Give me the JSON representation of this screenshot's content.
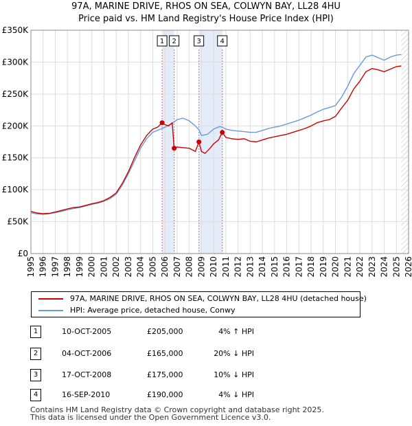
{
  "header": {
    "title": "97A, MARINE DRIVE, RHOS ON SEA, COLWYN BAY, LL28 4HU",
    "subtitle": "Price paid vs. HM Land Registry's House Price Index (HPI)"
  },
  "chart_data": {
    "type": "line",
    "xlim": [
      1995,
      2026
    ],
    "ylim": [
      0,
      350000
    ],
    "yticks": [
      0,
      50000,
      100000,
      150000,
      200000,
      250000,
      300000,
      350000
    ],
    "ytick_labels": [
      "£0",
      "£50K",
      "£100K",
      "£150K",
      "£200K",
      "£250K",
      "£300K",
      "£350K"
    ],
    "xticks": [
      1995,
      1996,
      1997,
      1998,
      1999,
      2000,
      2001,
      2002,
      2003,
      2004,
      2005,
      2006,
      2007,
      2008,
      2009,
      2010,
      2011,
      2012,
      2013,
      2014,
      2015,
      2016,
      2017,
      2018,
      2019,
      2020,
      2021,
      2022,
      2023,
      2024,
      2025,
      2026
    ],
    "grid": true,
    "colors": {
      "property": "#cc0000",
      "hpi": "#6699dd",
      "marker_line": "#dd6677",
      "span_fill": "#e4ecf8",
      "hatch": "#bbbbbb"
    },
    "series": [
      {
        "name": "97A, MARINE DRIVE, RHOS ON SEA, COLWYN BAY, LL28 4HU (detached house)",
        "points": [
          [
            1995.0,
            66000
          ],
          [
            1995.5,
            63500
          ],
          [
            1996.0,
            62500
          ],
          [
            1996.5,
            63000
          ],
          [
            1997.0,
            65000
          ],
          [
            1997.5,
            67500
          ],
          [
            1998.0,
            70000
          ],
          [
            1998.5,
            72000
          ],
          [
            1999.0,
            73000
          ],
          [
            1999.5,
            75500
          ],
          [
            2000.0,
            78000
          ],
          [
            2000.5,
            80000
          ],
          [
            2001.0,
            83000
          ],
          [
            2001.5,
            88000
          ],
          [
            2002.0,
            95000
          ],
          [
            2002.5,
            110000
          ],
          [
            2003.0,
            128000
          ],
          [
            2003.5,
            150000
          ],
          [
            2004.0,
            170000
          ],
          [
            2004.5,
            185000
          ],
          [
            2005.0,
            195000
          ],
          [
            2005.4,
            198000
          ],
          [
            2005.77,
            205000
          ],
          [
            2006.0,
            202000
          ],
          [
            2006.3,
            200000
          ],
          [
            2006.6,
            205000
          ],
          [
            2006.76,
            165000
          ],
          [
            2007.0,
            167000
          ],
          [
            2007.5,
            166000
          ],
          [
            2008.0,
            165000
          ],
          [
            2008.5,
            160000
          ],
          [
            2008.79,
            175000
          ],
          [
            2009.0,
            160000
          ],
          [
            2009.3,
            157000
          ],
          [
            2009.7,
            165000
          ],
          [
            2010.0,
            172000
          ],
          [
            2010.4,
            178000
          ],
          [
            2010.71,
            190000
          ],
          [
            2011.0,
            182000
          ],
          [
            2011.5,
            180000
          ],
          [
            2012.0,
            179000
          ],
          [
            2012.5,
            180000
          ],
          [
            2013.0,
            176000
          ],
          [
            2013.5,
            175000
          ],
          [
            2014.0,
            178000
          ],
          [
            2014.5,
            181000
          ],
          [
            2015.0,
            183000
          ],
          [
            2015.5,
            185000
          ],
          [
            2016.0,
            187000
          ],
          [
            2016.5,
            190000
          ],
          [
            2017.0,
            193000
          ],
          [
            2017.5,
            196000
          ],
          [
            2018.0,
            200000
          ],
          [
            2018.5,
            205000
          ],
          [
            2019.0,
            208000
          ],
          [
            2019.5,
            210000
          ],
          [
            2020.0,
            215000
          ],
          [
            2020.5,
            228000
          ],
          [
            2021.0,
            240000
          ],
          [
            2021.5,
            258000
          ],
          [
            2022.0,
            270000
          ],
          [
            2022.5,
            285000
          ],
          [
            2023.0,
            290000
          ],
          [
            2023.5,
            288000
          ],
          [
            2024.0,
            285000
          ],
          [
            2024.5,
            289000
          ],
          [
            2025.0,
            293000
          ],
          [
            2025.4,
            294000
          ]
        ]
      },
      {
        "name": "HPI: Average price, detached house, Conwy",
        "points": [
          [
            1995.0,
            64000
          ],
          [
            1995.5,
            62000
          ],
          [
            1996.0,
            61500
          ],
          [
            1996.5,
            62500
          ],
          [
            1997.0,
            64000
          ],
          [
            1997.5,
            66000
          ],
          [
            1998.0,
            68500
          ],
          [
            1998.5,
            70500
          ],
          [
            1999.0,
            72000
          ],
          [
            1999.5,
            74500
          ],
          [
            2000.0,
            77000
          ],
          [
            2000.5,
            79000
          ],
          [
            2001.0,
            82000
          ],
          [
            2001.5,
            86000
          ],
          [
            2002.0,
            93000
          ],
          [
            2002.5,
            107000
          ],
          [
            2003.0,
            125000
          ],
          [
            2003.5,
            145000
          ],
          [
            2004.0,
            165000
          ],
          [
            2004.5,
            180000
          ],
          [
            2005.0,
            190000
          ],
          [
            2005.5,
            194000
          ],
          [
            2005.77,
            196000
          ],
          [
            2006.0,
            198000
          ],
          [
            2006.5,
            203000
          ],
          [
            2006.76,
            206000
          ],
          [
            2007.0,
            210000
          ],
          [
            2007.5,
            212000
          ],
          [
            2008.0,
            208000
          ],
          [
            2008.5,
            200000
          ],
          [
            2008.79,
            194000
          ],
          [
            2009.0,
            185000
          ],
          [
            2009.5,
            187000
          ],
          [
            2010.0,
            195000
          ],
          [
            2010.5,
            199000
          ],
          [
            2010.71,
            198000
          ],
          [
            2011.0,
            195000
          ],
          [
            2011.5,
            193000
          ],
          [
            2012.0,
            192000
          ],
          [
            2012.5,
            191000
          ],
          [
            2013.0,
            190000
          ],
          [
            2013.5,
            190000
          ],
          [
            2014.0,
            193000
          ],
          [
            2014.5,
            196000
          ],
          [
            2015.0,
            198000
          ],
          [
            2015.5,
            200000
          ],
          [
            2016.0,
            203000
          ],
          [
            2016.5,
            206000
          ],
          [
            2017.0,
            209000
          ],
          [
            2017.5,
            213000
          ],
          [
            2018.0,
            217000
          ],
          [
            2018.5,
            222000
          ],
          [
            2019.0,
            226000
          ],
          [
            2019.5,
            229000
          ],
          [
            2020.0,
            232000
          ],
          [
            2020.5,
            245000
          ],
          [
            2021.0,
            262000
          ],
          [
            2021.5,
            282000
          ],
          [
            2022.0,
            295000
          ],
          [
            2022.5,
            308000
          ],
          [
            2023.0,
            311000
          ],
          [
            2023.5,
            307000
          ],
          [
            2024.0,
            303000
          ],
          [
            2024.5,
            308000
          ],
          [
            2025.0,
            311000
          ],
          [
            2025.4,
            312000
          ]
        ]
      }
    ],
    "markers": [
      {
        "label": "1",
        "x": 2005.77,
        "y": 205000
      },
      {
        "label": "2",
        "x": 2006.76,
        "y": 165000
      },
      {
        "label": "3",
        "x": 2008.79,
        "y": 175000
      },
      {
        "label": "4",
        "x": 2010.71,
        "y": 190000
      }
    ],
    "shaded_spans": [
      [
        2005.77,
        2006.76
      ],
      [
        2008.79,
        2010.71
      ]
    ],
    "hatched_from": 2025.4
  },
  "legend": {
    "items": [
      {
        "label": "97A, MARINE DRIVE, RHOS ON SEA, COLWYN BAY, LL28 4HU (detached house)",
        "color": "#cc0000"
      },
      {
        "label": "HPI: Average price, detached house, Conwy",
        "color": "#6699dd"
      }
    ]
  },
  "transactions": [
    {
      "num": "1",
      "date": "10-OCT-2005",
      "price": "£205,000",
      "hpi": "4% ↑ HPI"
    },
    {
      "num": "2",
      "date": "04-OCT-2006",
      "price": "£165,000",
      "hpi": "20% ↓ HPI"
    },
    {
      "num": "3",
      "date": "17-OCT-2008",
      "price": "£175,000",
      "hpi": "10% ↓ HPI"
    },
    {
      "num": "4",
      "date": "16-SEP-2010",
      "price": "£190,000",
      "hpi": "4% ↓ HPI"
    }
  ],
  "footer": {
    "line1": "Contains HM Land Registry data © Crown copyright and database right 2025.",
    "line2": "This data is licensed under the Open Government Licence v3.0."
  }
}
